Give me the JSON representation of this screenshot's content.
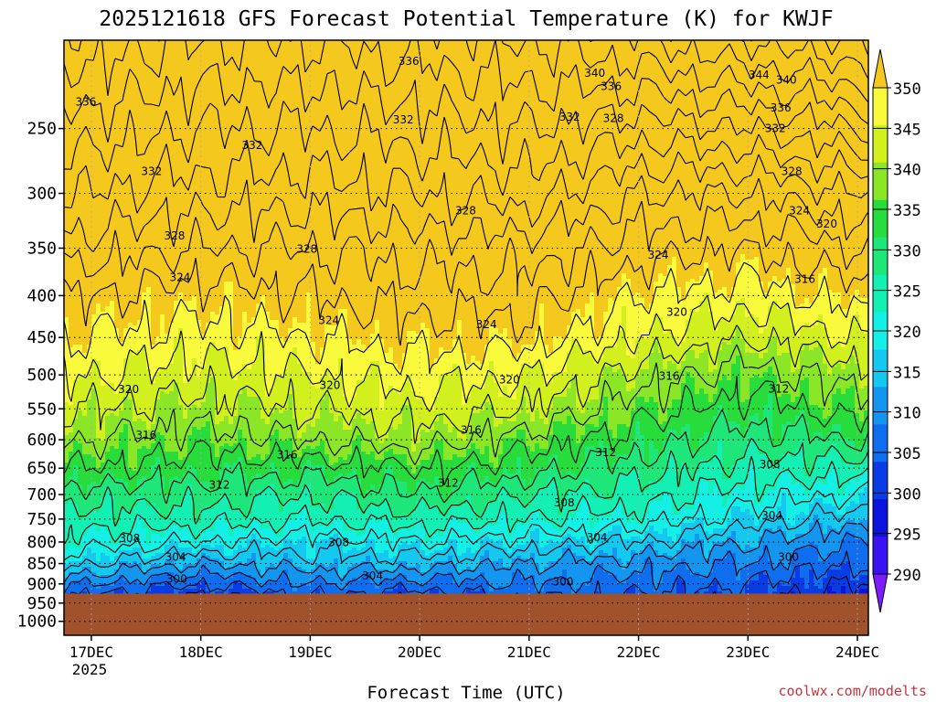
{
  "chart_data": {
    "type": "heatmap",
    "title": "2025121618 GFS Forecast Potential Temperature (K) for KWJF",
    "xlabel": "Forecast Time (UTC)",
    "ylabel": "",
    "source": "coolwx.com/modelts",
    "y_scale": "log-pressure",
    "ylim": [
      1040,
      195
    ],
    "y_ticks": [
      250,
      300,
      350,
      400,
      450,
      500,
      550,
      600,
      650,
      700,
      750,
      800,
      850,
      900,
      950,
      1000
    ],
    "x_ticks": [
      "17DEC",
      "18DEC",
      "19DEC",
      "20DEC",
      "21DEC",
      "22DEC",
      "23DEC",
      "24DEC"
    ],
    "x_year": "2025",
    "xlim_days": [
      -0.25,
      7.1
    ],
    "grid": true,
    "surface_pressure": 925,
    "colorbar": {
      "levels": [
        290,
        295,
        300,
        305,
        310,
        315,
        320,
        325,
        330,
        335,
        340,
        345,
        350
      ],
      "colors": [
        "#7d1cff",
        "#3a14f0",
        "#0a14dc",
        "#0a3ce6",
        "#0f6ef0",
        "#1496f0",
        "#14c8f0",
        "#14f0e6",
        "#14f0b4",
        "#1ee678",
        "#28dc3c",
        "#8ce628",
        "#d2f01e",
        "#fafa3c",
        "#f5c81e"
      ],
      "extend": "both",
      "placement": "right"
    },
    "profiles": {
      "x_days": [
        0,
        1,
        2,
        3,
        4,
        5,
        6,
        7
      ],
      "pressure": [
        250,
        300,
        350,
        400,
        450,
        500,
        550,
        600,
        650,
        700,
        750,
        800,
        850,
        900
      ],
      "theta_K": [
        [
          333,
          330,
          327,
          324,
          322,
          320,
          318,
          316,
          314,
          311,
          309,
          307,
          304,
          300
        ],
        [
          332,
          329,
          326,
          323,
          321,
          319,
          317,
          315,
          313,
          311,
          309,
          306,
          302,
          298
        ],
        [
          332,
          329,
          326,
          324,
          322,
          320,
          318,
          316,
          313,
          310,
          308,
          305,
          303,
          300
        ],
        [
          333,
          330,
          327,
          325,
          323,
          321,
          319,
          317,
          314,
          312,
          309,
          306,
          303,
          299
        ],
        [
          334,
          331,
          327,
          325,
          323,
          320,
          318,
          315,
          313,
          310,
          308,
          305,
          302,
          300
        ],
        [
          333,
          328,
          325,
          322,
          320,
          317,
          315,
          313,
          311,
          309,
          307,
          304,
          301,
          299
        ],
        [
          334,
          328,
          324,
          321,
          318,
          315,
          313,
          311,
          309,
          307,
          305,
          302,
          300,
          298
        ],
        [
          336,
          330,
          326,
          323,
          320,
          317,
          315,
          312,
          309,
          306,
          303,
          300,
          298,
          296
        ]
      ]
    },
    "contour_labels": [
      {
        "text": "336",
        "day": 2.9,
        "p": 207
      },
      {
        "text": "340",
        "day": 4.6,
        "p": 214
      },
      {
        "text": "336",
        "day": 4.75,
        "p": 222
      },
      {
        "text": "344",
        "day": 6.1,
        "p": 215
      },
      {
        "text": "340",
        "day": 6.35,
        "p": 218
      },
      {
        "text": "336",
        "day": 6.3,
        "p": 236
      },
      {
        "text": "336",
        "day": -0.05,
        "p": 232
      },
      {
        "text": "332",
        "day": 2.85,
        "p": 244
      },
      {
        "text": "332",
        "day": 4.37,
        "p": 242
      },
      {
        "text": "328",
        "day": 4.77,
        "p": 243
      },
      {
        "text": "332",
        "day": 6.25,
        "p": 250
      },
      {
        "text": "332",
        "day": 1.47,
        "p": 262
      },
      {
        "text": "332",
        "day": 0.55,
        "p": 282
      },
      {
        "text": "328",
        "day": 6.4,
        "p": 282
      },
      {
        "text": "328",
        "day": 3.42,
        "p": 315
      },
      {
        "text": "324",
        "day": 6.47,
        "p": 315
      },
      {
        "text": "320",
        "day": 6.72,
        "p": 327
      },
      {
        "text": "328",
        "day": 0.76,
        "p": 338
      },
      {
        "text": "328",
        "day": 1.97,
        "p": 351
      },
      {
        "text": "324",
        "day": 5.18,
        "p": 357
      },
      {
        "text": "324",
        "day": 0.81,
        "p": 380
      },
      {
        "text": "316",
        "day": 6.52,
        "p": 382
      },
      {
        "text": "320",
        "day": 5.35,
        "p": 419
      },
      {
        "text": "324",
        "day": 2.17,
        "p": 429
      },
      {
        "text": "324",
        "day": 3.61,
        "p": 434
      },
      {
        "text": "320",
        "day": 0.34,
        "p": 521
      },
      {
        "text": "320",
        "day": 2.18,
        "p": 515
      },
      {
        "text": "320",
        "day": 3.82,
        "p": 507
      },
      {
        "text": "316",
        "day": 5.28,
        "p": 502
      },
      {
        "text": "312",
        "day": 6.28,
        "p": 520
      },
      {
        "text": "316",
        "day": 0.5,
        "p": 592
      },
      {
        "text": "316",
        "day": 3.47,
        "p": 584
      },
      {
        "text": "316",
        "day": 1.79,
        "p": 626
      },
      {
        "text": "312",
        "day": 4.7,
        "p": 622
      },
      {
        "text": "308",
        "day": 6.2,
        "p": 643
      },
      {
        "text": "312",
        "day": 1.17,
        "p": 681
      },
      {
        "text": "312",
        "day": 3.26,
        "p": 678
      },
      {
        "text": "308",
        "day": 4.32,
        "p": 716
      },
      {
        "text": "304",
        "day": 6.22,
        "p": 743
      },
      {
        "text": "308",
        "day": 0.35,
        "p": 792
      },
      {
        "text": "304",
        "day": 4.62,
        "p": 790
      },
      {
        "text": "308",
        "day": 2.26,
        "p": 801
      },
      {
        "text": "304",
        "day": 0.77,
        "p": 835
      },
      {
        "text": "300",
        "day": 6.37,
        "p": 835
      },
      {
        "text": "304",
        "day": 2.57,
        "p": 880
      },
      {
        "text": "300",
        "day": 0.78,
        "p": 888
      },
      {
        "text": "300",
        "day": 4.31,
        "p": 895
      }
    ]
  }
}
